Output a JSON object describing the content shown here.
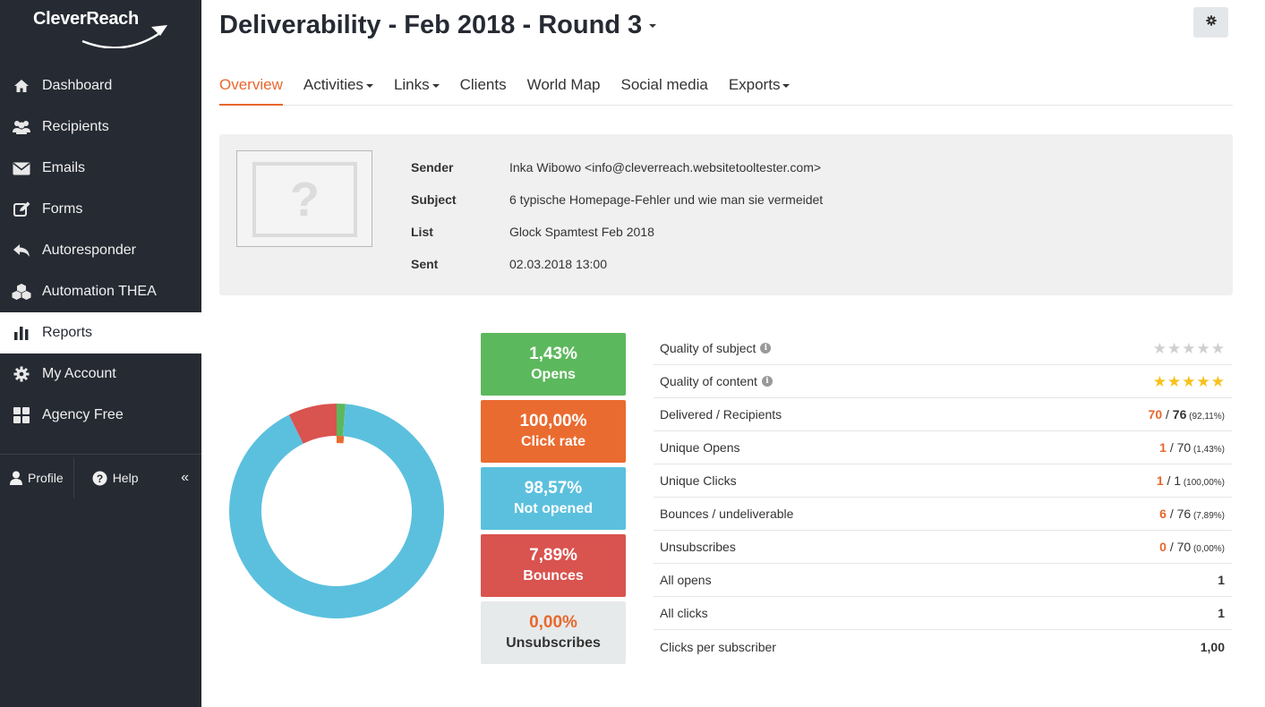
{
  "brand": {
    "name": "CleverReach"
  },
  "sidebar": {
    "items": [
      {
        "label": "Dashboard",
        "icon": "home-icon"
      },
      {
        "label": "Recipients",
        "icon": "users-icon"
      },
      {
        "label": "Emails",
        "icon": "envelope-icon"
      },
      {
        "label": "Forms",
        "icon": "edit-icon"
      },
      {
        "label": "Autoresponder",
        "icon": "reply-icon"
      },
      {
        "label": "Automation THEA",
        "icon": "cubes-icon"
      },
      {
        "label": "Reports",
        "icon": "bar-chart-icon",
        "active": true
      },
      {
        "label": "My Account",
        "icon": "gear-icon"
      },
      {
        "label": "Agency Free",
        "icon": "grid-icon"
      }
    ],
    "bottom": {
      "profile": "Profile",
      "help": "Help",
      "collapse": "«"
    }
  },
  "header": {
    "title": "Deliverability - Feb 2018 - Round 3"
  },
  "tabs": [
    {
      "label": "Overview",
      "active": true,
      "dropdown": false
    },
    {
      "label": "Activities",
      "dropdown": true
    },
    {
      "label": "Links",
      "dropdown": true
    },
    {
      "label": "Clients",
      "dropdown": false
    },
    {
      "label": "World Map",
      "dropdown": false
    },
    {
      "label": "Social media",
      "dropdown": false
    },
    {
      "label": "Exports",
      "dropdown": true
    }
  ],
  "mailing": {
    "thumbnail_placeholder": "?",
    "sender_label": "Sender",
    "sender": "Inka Wibowo <info@cleverreach.websitetooltester.com>",
    "subject_label": "Subject",
    "subject": "6 typische Homepage-Fehler und wie man sie vermeidet",
    "list_label": "List",
    "list": "Glock Spamtest Feb 2018",
    "sent_label": "Sent",
    "sent": "02.03.2018 13:00"
  },
  "stats": [
    {
      "pct": "1,43%",
      "label": "Opens",
      "color": "#5cb85c",
      "text_color": "#ffffff"
    },
    {
      "pct": "100,00%",
      "label": "Click rate",
      "color": "#ea6b30",
      "text_color": "#ffffff"
    },
    {
      "pct": "98,57%",
      "label": "Not opened",
      "color": "#5bc0de",
      "text_color": "#ffffff"
    },
    {
      "pct": "7,89%",
      "label": "Bounces",
      "color": "#d9534f",
      "text_color": "#ffffff"
    },
    {
      "pct": "0,00%",
      "label": "Unsubscribes",
      "color": "#e6eaea",
      "text_color": "#e8672d",
      "label_color": "#333333"
    }
  ],
  "chart_data": {
    "type": "pie",
    "donut": true,
    "outer_ring": [
      {
        "name": "Not opened",
        "value": 98.57,
        "color": "#5bc0de"
      },
      {
        "name": "Bounces",
        "value": 7.89,
        "color": "#d9534f"
      },
      {
        "name": "Opens",
        "value": 1.43,
        "color": "#5cb85c"
      }
    ],
    "inner_ring": [
      {
        "name": "Click rate",
        "value": 1.43,
        "color": "#ea6b30"
      }
    ]
  },
  "kpis": [
    {
      "label": "Quality of subject",
      "info": true,
      "type": "stars",
      "rating": 0
    },
    {
      "label": "Quality of content",
      "info": true,
      "type": "stars",
      "rating": 5
    },
    {
      "label": "Delivered / Recipients",
      "type": "ratio",
      "hl": "70",
      "sep": " / ",
      "tot": "76",
      "pct": "(92,11%)"
    },
    {
      "label": "Unique Opens",
      "type": "ratio",
      "hl": "1",
      "sep": " / ",
      "tot": "70",
      "pct": "(1,43%)"
    },
    {
      "label": "Unique Clicks",
      "type": "ratio",
      "hl": "1",
      "sep": " / ",
      "tot": "1",
      "pct": "(100,00%)"
    },
    {
      "label": "Bounces / undeliverable",
      "type": "ratio",
      "hl": "6",
      "sep": " / ",
      "tot": "76",
      "pct": "(7,89%)"
    },
    {
      "label": "Unsubscribes",
      "type": "ratio",
      "hl": "0",
      "sep": " / ",
      "tot": "70",
      "pct": "(0,00%)"
    },
    {
      "label": "All opens",
      "type": "plain",
      "value": "1"
    },
    {
      "label": "All clicks",
      "type": "plain",
      "value": "1"
    },
    {
      "label": "Clicks per subscriber",
      "type": "plain",
      "value": "1,00"
    }
  ],
  "colors": {
    "accent": "#e8672d",
    "sidebar_bg": "#262a33"
  }
}
